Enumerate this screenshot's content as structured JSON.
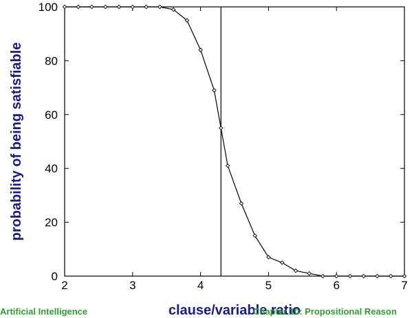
{
  "chart_data": {
    "type": "line",
    "xlabel": "clause/variable ratio",
    "ylabel": "probability of being satisfiable",
    "xlim": [
      2,
      7
    ],
    "ylim": [
      0,
      100
    ],
    "xticks": [
      2,
      3,
      4,
      5,
      6,
      7
    ],
    "yticks": [
      0,
      20,
      40,
      60,
      80,
      100
    ],
    "reference_line_x": 4.3,
    "grid": false,
    "series": [
      {
        "x": [
          2.0,
          2.2,
          2.4,
          2.6,
          2.8,
          3.0,
          3.2,
          3.4,
          3.6,
          3.8,
          4.0,
          4.2,
          4.3,
          4.4,
          4.6,
          4.8,
          5.0,
          5.2,
          5.4,
          5.6,
          5.8,
          6.0,
          6.2,
          6.4,
          6.6,
          6.8,
          7.0
        ],
        "y": [
          100,
          100,
          100,
          100,
          100,
          100,
          100,
          100,
          99,
          95,
          84,
          69,
          55,
          41,
          27,
          15,
          7,
          5,
          2,
          1,
          0,
          0,
          0,
          0,
          0,
          0,
          0
        ]
      }
    ]
  },
  "footer": {
    "left": "Artificial Intelligence",
    "right": "Chapter 10: Propositional Reason"
  },
  "colors": {
    "axis_title": "#1a1a8c",
    "footer": "#2e9e2e",
    "line": "#000000"
  }
}
